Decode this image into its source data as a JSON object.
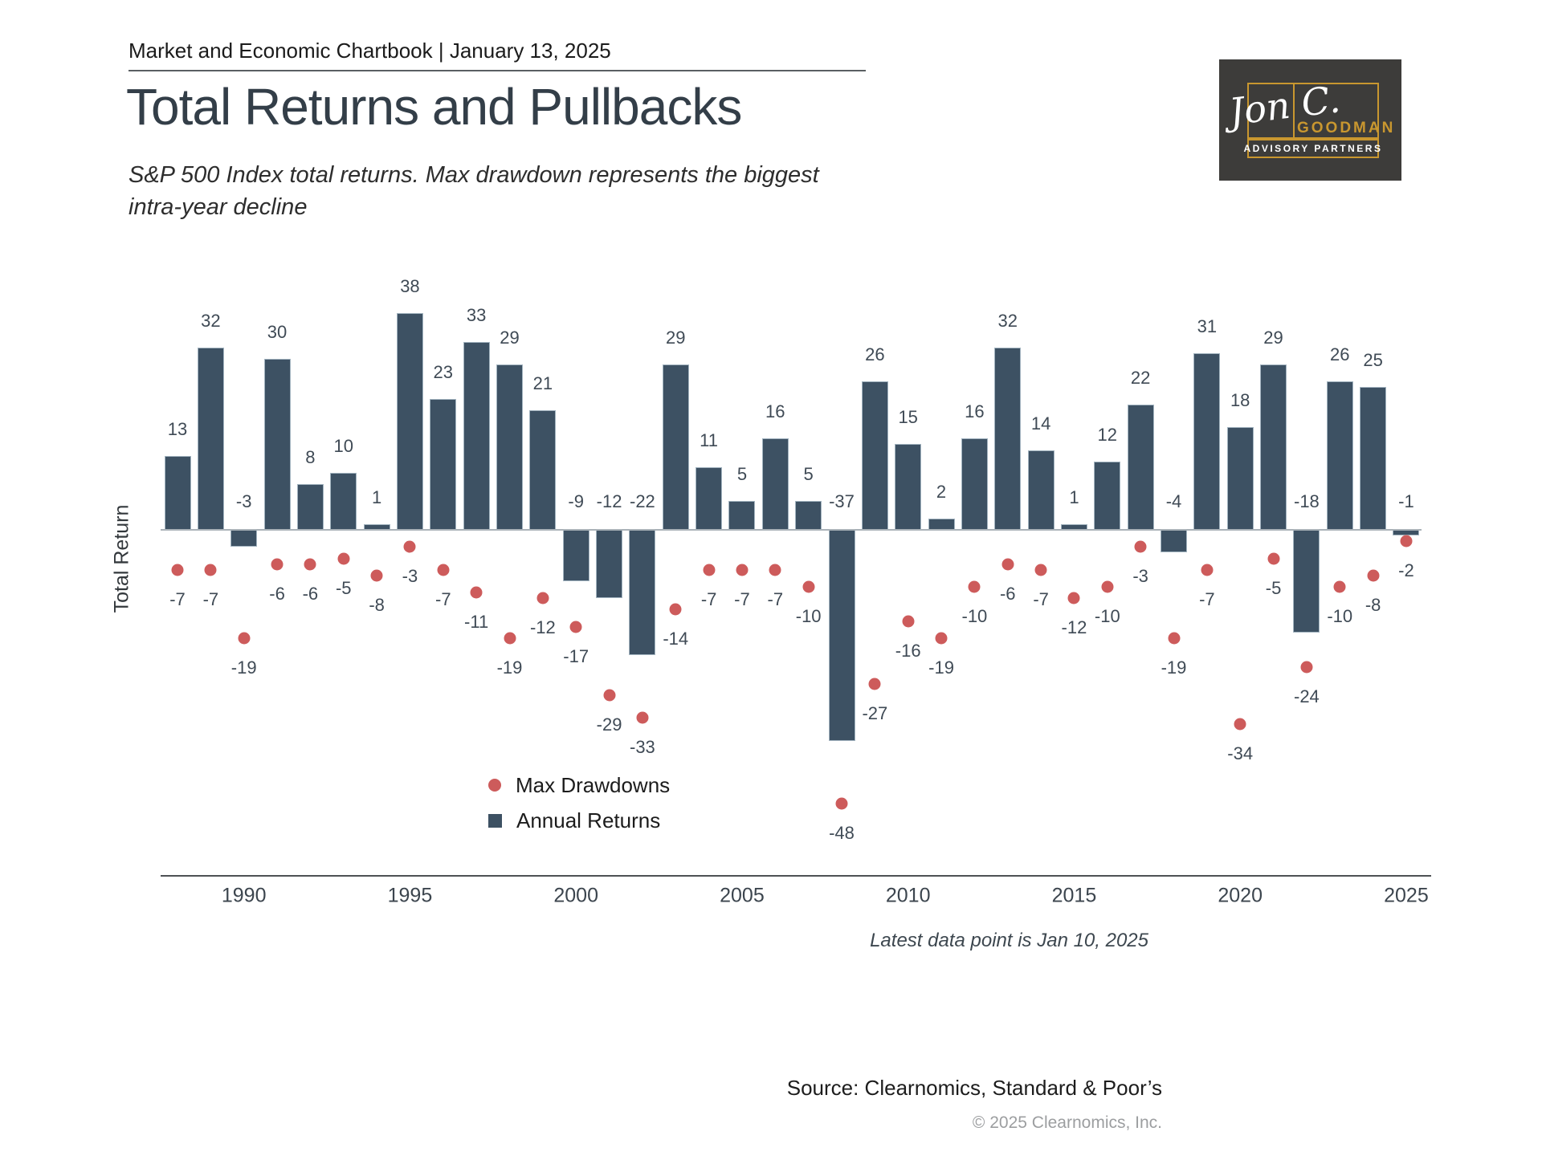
{
  "header": {
    "chartbook_label": "Market and Economic Chartbook | January 13, 2025"
  },
  "title": "Total Returns and Pullbacks",
  "subtitle": {
    "line1": "S&P 500 Index total returns. Max drawdown represents the biggest",
    "line2": "intra-year decline"
  },
  "logo": {
    "signature": "Jon C.",
    "name": "GOODMAN",
    "tagline": "ADVISORY PARTNERS",
    "background": "#3d3c3a",
    "gold": "#c9972f"
  },
  "chart_data": {
    "type": "bar",
    "title": "Total Returns and Pullbacks",
    "xlabel": "",
    "ylabel": "Total Return",
    "grid": false,
    "legend_position": "bottom-left-of-center",
    "ylim": [
      -50,
      40
    ],
    "x": [
      1988,
      1989,
      1990,
      1991,
      1992,
      1993,
      1994,
      1995,
      1996,
      1997,
      1998,
      1999,
      2000,
      2001,
      2002,
      2003,
      2004,
      2005,
      2006,
      2007,
      2008,
      2009,
      2010,
      2011,
      2012,
      2013,
      2014,
      2015,
      2016,
      2017,
      2018,
      2019,
      2020,
      2021,
      2022,
      2023,
      2024,
      2025
    ],
    "x_ticks": [
      1990,
      1995,
      2000,
      2005,
      2010,
      2015,
      2020,
      2025
    ],
    "series": [
      {
        "name": "Annual Returns",
        "type": "bar",
        "color": "#3d5163",
        "values": [
          13,
          32,
          -3,
          30,
          8,
          10,
          1,
          38,
          23,
          33,
          29,
          21,
          -9,
          -12,
          -22,
          29,
          11,
          5,
          16,
          5,
          -37,
          26,
          15,
          2,
          16,
          32,
          14,
          1,
          12,
          22,
          -4,
          31,
          18,
          29,
          -18,
          26,
          25,
          -1
        ]
      },
      {
        "name": "Max Drawdowns",
        "type": "scatter",
        "color": "#cd5b5b",
        "values": [
          -7,
          -7,
          -19,
          -6,
          -6,
          -5,
          -8,
          -3,
          -7,
          -11,
          -19,
          -12,
          -17,
          -29,
          -33,
          -14,
          -7,
          -7,
          -7,
          -10,
          -48,
          -27,
          -16,
          -19,
          -10,
          -6,
          -7,
          -12,
          -10,
          -3,
          -19,
          -7,
          -34,
          -5,
          -24,
          -10,
          -8,
          -2
        ]
      }
    ]
  },
  "notes": {
    "latest_data": "Latest data point is Jan 10, 2025"
  },
  "footer": {
    "source": "Source: Clearnomics, Standard & Poor’s",
    "copyright": "© 2025 Clearnomics, Inc."
  }
}
